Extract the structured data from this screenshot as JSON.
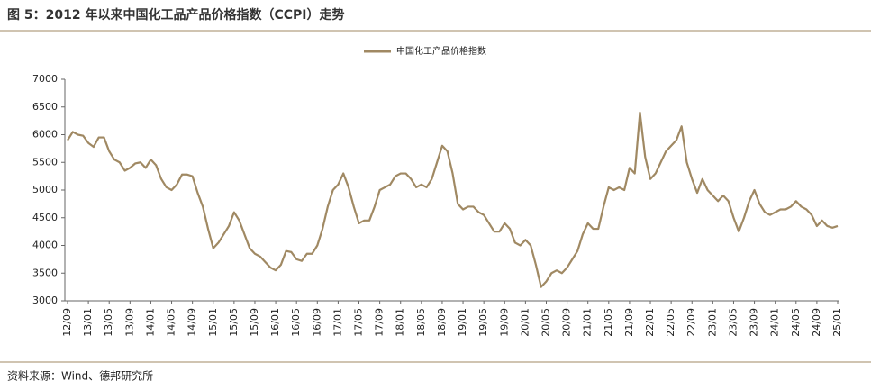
{
  "chart_data": {
    "type": "line",
    "title": "图 5：2012 年以来中国化工品产品价格指数（CCPI）走势",
    "source": "资料来源：Wind、德邦研究所",
    "categories": [
      "12/09",
      null,
      null,
      null,
      "13/01",
      null,
      null,
      null,
      "13/05",
      null,
      null,
      null,
      "13/09",
      null,
      null,
      null,
      "14/01",
      null,
      null,
      null,
      "14/05",
      null,
      null,
      null,
      "14/09",
      null,
      null,
      null,
      "15/01",
      null,
      null,
      null,
      "15/05",
      null,
      null,
      null,
      "15/09",
      null,
      null,
      null,
      "16/01",
      null,
      null,
      null,
      "16/05",
      null,
      null,
      null,
      "16/09",
      null,
      null,
      null,
      "17/01",
      null,
      null,
      null,
      "17/05",
      null,
      null,
      null,
      "17/09",
      null,
      null,
      null,
      "18/01",
      null,
      null,
      null,
      "18/05",
      null,
      null,
      null,
      "18/09",
      null,
      null,
      null,
      "19/01",
      null,
      null,
      null,
      "19/05",
      null,
      null,
      null,
      "19/09",
      null,
      null,
      null,
      "20/01",
      null,
      null,
      null,
      "20/05",
      null,
      null,
      null,
      "20/09",
      null,
      null,
      null,
      "21/01",
      null,
      null,
      null,
      "21/05",
      null,
      null,
      null,
      "21/09",
      null,
      null,
      null,
      "22/01",
      null,
      null,
      null,
      "22/05",
      null,
      null,
      null,
      "22/09",
      null,
      null,
      null,
      "23/01",
      null,
      null,
      null,
      "23/05",
      null,
      null,
      null,
      "23/09",
      null,
      null,
      null,
      "24/01",
      null,
      null,
      null,
      "24/05",
      null,
      null,
      null,
      "24/09",
      null,
      null,
      null,
      "25/01"
    ],
    "series": [
      {
        "name": "中国化工产品价格指数",
        "color": "#a08963",
        "values": [
          5900,
          6050,
          6000,
          5980,
          5850,
          5780,
          5950,
          5950,
          5700,
          5550,
          5500,
          5350,
          5400,
          5480,
          5500,
          5400,
          5550,
          5450,
          5200,
          5050,
          5000,
          5100,
          5280,
          5280,
          5250,
          4950,
          4700,
          4300,
          3950,
          4050,
          4200,
          4350,
          4600,
          4450,
          4200,
          3950,
          3850,
          3800,
          3700,
          3600,
          3550,
          3650,
          3900,
          3880,
          3750,
          3720,
          3850,
          3850,
          4000,
          4300,
          4700,
          5000,
          5100,
          5300,
          5050,
          4700,
          4400,
          4450,
          4450,
          4700,
          5000,
          5050,
          5100,
          5250,
          5300,
          5300,
          5200,
          5050,
          5100,
          5050,
          5200,
          5500,
          5800,
          5700,
          5300,
          4750,
          4650,
          4700,
          4700,
          4600,
          4550,
          4400,
          4250,
          4250,
          4400,
          4300,
          4050,
          4000,
          4100,
          4000,
          3650,
          3250,
          3350,
          3500,
          3550,
          3500,
          3600,
          3750,
          3900,
          4200,
          4400,
          4300,
          4300,
          4700,
          5050,
          5000,
          5050,
          5000,
          5400,
          5300,
          6400,
          5600,
          5200,
          5300,
          5500,
          5700,
          5800,
          5900,
          6150,
          5500,
          5200,
          4950,
          5200,
          5000,
          4900,
          4800,
          4900,
          4800,
          4500,
          4250,
          4500,
          4800,
          5000,
          4750,
          4600,
          4550,
          4600,
          4650,
          4650,
          4700,
          4800,
          4700,
          4650,
          4550,
          4350,
          4450,
          4350,
          4320,
          4350
        ]
      }
    ],
    "ylim": [
      3000,
      7000
    ],
    "yticks": [
      3000,
      3500,
      4000,
      4500,
      5000,
      5500,
      6000,
      6500,
      7000
    ],
    "legend": "top"
  }
}
